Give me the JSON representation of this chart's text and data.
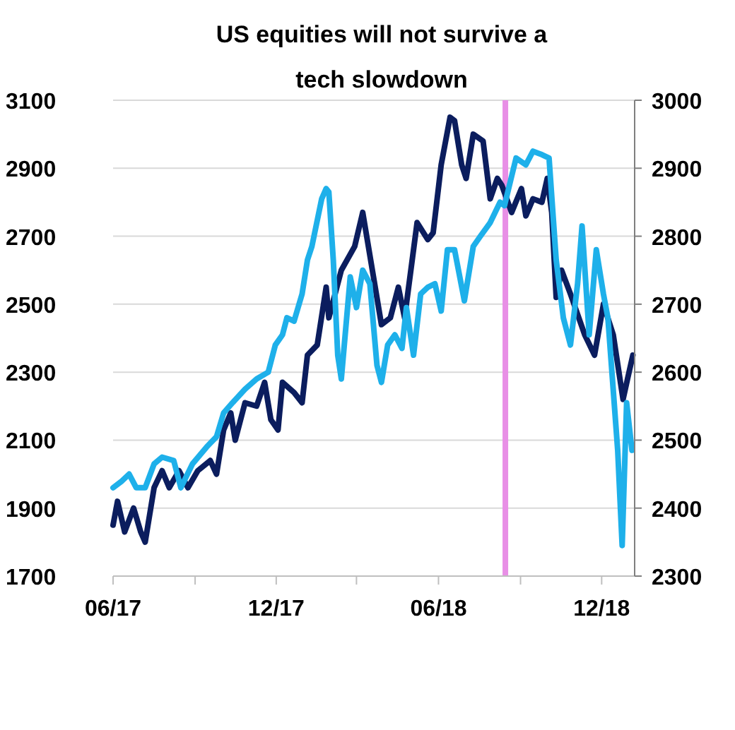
{
  "chart_data": {
    "type": "line",
    "title": "US equities will not survive a tech slowdown",
    "xlim": [
      "2017-06-01",
      "2019-01-07"
    ],
    "xticks": [
      {
        "value": "2017-06-01",
        "label": "06/17"
      },
      {
        "value": "2017-09-01",
        "label": null
      },
      {
        "value": "2017-12-01",
        "label": "12/17"
      },
      {
        "value": "2018-03-01",
        "label": null
      },
      {
        "value": "2018-06-01",
        "label": "06/18"
      },
      {
        "value": "2018-09-01",
        "label": null
      },
      {
        "value": "2018-12-01",
        "label": "12/18"
      }
    ],
    "ylim": [
      1700,
      3100
    ],
    "yticks": [
      1700,
      1900,
      2100,
      2300,
      2500,
      2700,
      2900,
      3100
    ],
    "y2lim": [
      2300,
      3000
    ],
    "y2ticks": [
      2300,
      2400,
      2500,
      2600,
      2700,
      2800,
      2900,
      3000
    ],
    "grid": "y",
    "line_style": "solid",
    "marker": "none",
    "ref_lines": [
      {
        "axis": "x",
        "value": "2018-08-15",
        "label": null,
        "color": "#e88fe6"
      }
    ],
    "series": [
      {
        "color": "#0b1d5e",
        "x": [
          "2017-06-01",
          "2017-06-06",
          "2017-06-14",
          "2017-06-24",
          "2017-07-02",
          "2017-07-07",
          "2017-07-17",
          "2017-07-26",
          "2017-08-03",
          "2017-08-14",
          "2017-08-24",
          "2017-09-04",
          "2017-09-18",
          "2017-09-25",
          "2017-10-03",
          "2017-10-11",
          "2017-10-16",
          "2017-10-27",
          "2017-11-09",
          "2017-11-18",
          "2017-11-25",
          "2017-12-03",
          "2017-12-08",
          "2017-12-21",
          "2017-12-30",
          "2018-01-05",
          "2018-01-16",
          "2018-01-26",
          "2018-01-29",
          "2018-02-12",
          "2018-02-27",
          "2018-03-08",
          "2018-03-29",
          "2018-04-08",
          "2018-04-17",
          "2018-04-24",
          "2018-05-08",
          "2018-05-20",
          "2018-05-26",
          "2018-06-04",
          "2018-06-14",
          "2018-06-19",
          "2018-06-27",
          "2018-07-02",
          "2018-07-10",
          "2018-07-21",
          "2018-07-29",
          "2018-08-06",
          "2018-08-11",
          "2018-08-22",
          "2018-09-02",
          "2018-09-07",
          "2018-09-15",
          "2018-09-25",
          "2018-10-01",
          "2018-10-06",
          "2018-10-11",
          "2018-10-17",
          "2018-10-27",
          "2018-11-12",
          "2018-11-23",
          "2018-12-03",
          "2018-12-14",
          "2018-12-25",
          "2018-12-30",
          "2019-01-05"
        ],
        "values": [
          1850,
          1920,
          1830,
          1900,
          1830,
          1800,
          1960,
          2010,
          1960,
          2010,
          1960,
          2010,
          2040,
          2000,
          2130,
          2180,
          2100,
          2210,
          2200,
          2270,
          2160,
          2130,
          2270,
          2240,
          2210,
          2350,
          2380,
          2550,
          2460,
          2600,
          2670,
          2770,
          2440,
          2460,
          2550,
          2460,
          2740,
          2690,
          2710,
          2910,
          3050,
          3040,
          2910,
          2870,
          3000,
          2980,
          2810,
          2870,
          2850,
          2770,
          2840,
          2760,
          2810,
          2800,
          2870,
          2770,
          2520,
          2600,
          2530,
          2410,
          2350,
          2500,
          2410,
          2220,
          2280,
          2350
        ]
      },
      {
        "color": "#1eb0ea",
        "axis": "y2",
        "x": [
          "2017-06-01",
          "2017-06-11",
          "2017-06-19",
          "2017-06-27",
          "2017-07-07",
          "2017-07-17",
          "2017-07-26",
          "2017-08-08",
          "2017-08-16",
          "2017-08-29",
          "2017-09-14",
          "2017-09-25",
          "2017-10-03",
          "2017-10-13",
          "2017-10-27",
          "2017-11-09",
          "2017-11-22",
          "2017-11-30",
          "2017-12-08",
          "2017-12-13",
          "2017-12-21",
          "2017-12-30",
          "2018-01-05",
          "2018-01-10",
          "2018-01-21",
          "2018-01-26",
          "2018-01-29",
          "2018-02-03",
          "2018-02-08",
          "2018-02-12",
          "2018-02-22",
          "2018-03-01",
          "2018-03-08",
          "2018-03-16",
          "2018-03-24",
          "2018-03-29",
          "2018-04-05",
          "2018-04-13",
          "2018-04-21",
          "2018-04-26",
          "2018-05-04",
          "2018-05-12",
          "2018-05-20",
          "2018-05-28",
          "2018-06-04",
          "2018-06-11",
          "2018-06-19",
          "2018-06-30",
          "2018-07-10",
          "2018-07-18",
          "2018-07-29",
          "2018-08-09",
          "2018-08-14",
          "2018-08-27",
          "2018-09-07",
          "2018-09-15",
          "2018-09-25",
          "2018-10-03",
          "2018-10-11",
          "2018-10-19",
          "2018-10-27",
          "2018-11-04",
          "2018-11-09",
          "2018-11-17",
          "2018-11-25",
          "2018-12-03",
          "2018-12-08",
          "2018-12-19",
          "2018-12-24",
          "2018-12-29",
          "2019-01-04"
        ],
        "values": [
          2430,
          2440,
          2450,
          2430,
          2430,
          2465,
          2475,
          2470,
          2430,
          2465,
          2490,
          2505,
          2540,
          2555,
          2575,
          2590,
          2600,
          2640,
          2655,
          2680,
          2675,
          2715,
          2765,
          2785,
          2855,
          2870,
          2865,
          2765,
          2625,
          2590,
          2740,
          2695,
          2750,
          2730,
          2610,
          2585,
          2640,
          2655,
          2635,
          2695,
          2625,
          2715,
          2725,
          2730,
          2690,
          2780,
          2780,
          2705,
          2785,
          2800,
          2820,
          2850,
          2845,
          2915,
          2905,
          2925,
          2920,
          2915,
          2765,
          2680,
          2640,
          2730,
          2815,
          2655,
          2780,
          2715,
          2680,
          2485,
          2345,
          2555,
          2485
        ]
      }
    ]
  }
}
